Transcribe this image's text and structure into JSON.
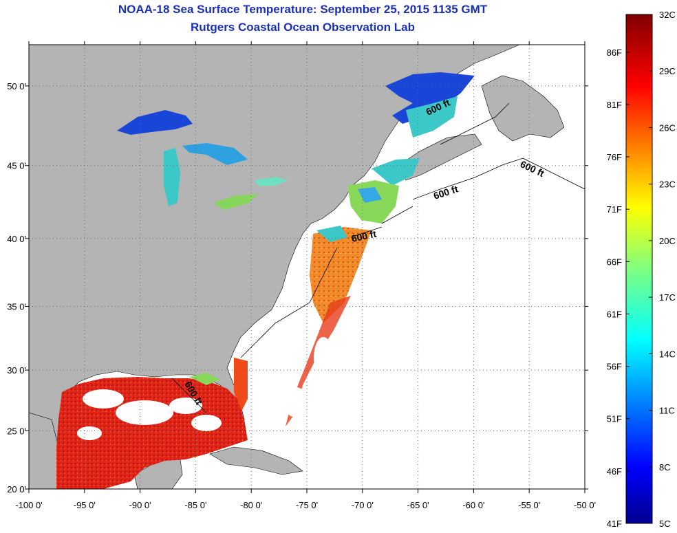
{
  "title": {
    "line1": "NOAA-18 Sea Surface Temperature:  September 25, 2015 1135 GMT",
    "line2": "Rutgers Coastal Ocean Observation Lab"
  },
  "map": {
    "lon_ticks": [
      "-100 0'",
      "-95 0'",
      "-90 0'",
      "-85 0'",
      "-80 0'",
      "-75 0'",
      "-70 0'",
      "-65 0'",
      "-60 0'",
      "-55 0'",
      "-50 0'"
    ],
    "lat_ticks": [
      "50 0'",
      "45 0'",
      "40 0'",
      "35 0'",
      "30 0'",
      "25 0'",
      "20 0'"
    ],
    "isobath_labels": [
      "600 ft",
      "600 ft",
      "600 ft",
      "600 ft",
      "600 ft"
    ],
    "colors": {
      "land": "#b4b4b4",
      "no_data": "#ffffff",
      "warm": "#d81a10",
      "hot": "#f23a12",
      "mid": "#f0a020",
      "cool": "#3cc8c8",
      "cold": "#1a46d8"
    }
  },
  "colorbar": {
    "celsius_labels": [
      "32C",
      "29C",
      "26C",
      "23C",
      "20C",
      "17C",
      "14C",
      "11C",
      "8C",
      "5C"
    ],
    "fahrenheit_labels": [
      "86F",
      "81F",
      "76F",
      "71F",
      "66F",
      "61F",
      "56F",
      "51F",
      "46F",
      "41F"
    ],
    "range_c": [
      5,
      32
    ],
    "range_f": [
      41,
      89.6
    ]
  }
}
